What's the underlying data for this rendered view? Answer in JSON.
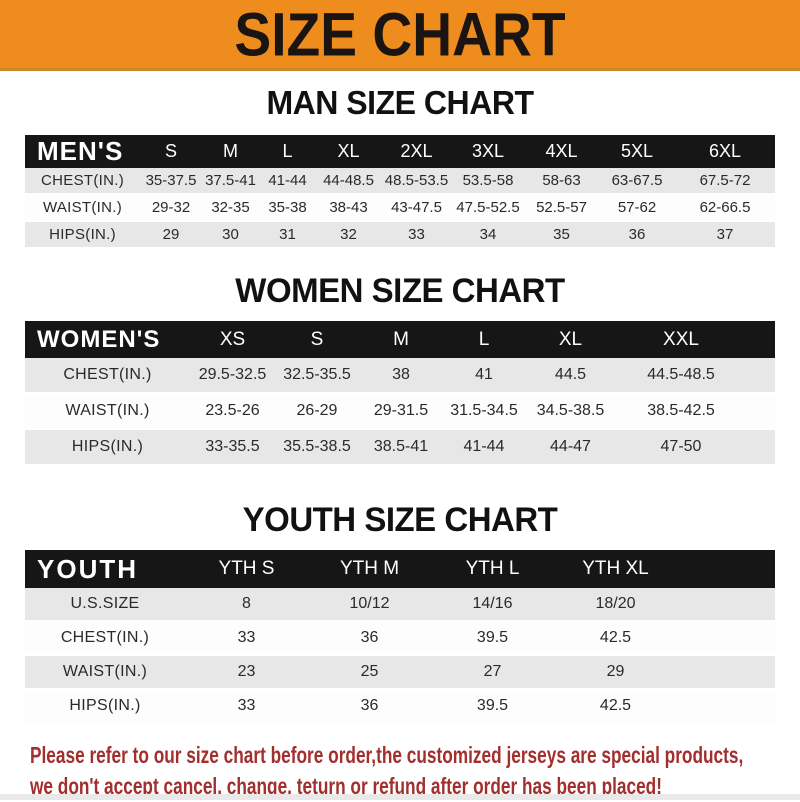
{
  "banner": {
    "title": "SIZE CHART"
  },
  "colors": {
    "banner_bg": "#EE8C1E",
    "header_bar": "#161616",
    "row_gray": "#E7E7E7",
    "footer_red": "#A32E2E"
  },
  "chart_data": [
    {
      "type": "table",
      "title": "MAN SIZE CHART",
      "header_label": "MEN'S",
      "columns": [
        "S",
        "M",
        "L",
        "XL",
        "2XL",
        "3XL",
        "4XL",
        "5XL",
        "6XL"
      ],
      "rows": [
        {
          "label": "CHEST(IN.)",
          "values": [
            "35-37.5",
            "37.5-41",
            "41-44",
            "44-48.5",
            "48.5-53.5",
            "53.5-58",
            "58-63",
            "63-67.5",
            "67.5-72"
          ]
        },
        {
          "label": "WAIST(IN.)",
          "values": [
            "29-32",
            "32-35",
            "35-38",
            "38-43",
            "43-47.5",
            "47.5-52.5",
            "52.5-57",
            "57-62",
            "62-66.5"
          ]
        },
        {
          "label": "HIPS(IN.)",
          "values": [
            "29",
            "30",
            "31",
            "32",
            "33",
            "34",
            "35",
            "36",
            "37"
          ]
        }
      ]
    },
    {
      "type": "table",
      "title": "WOMEN SIZE CHART",
      "header_label": "WOMEN'S",
      "columns": [
        "XS",
        "S",
        "M",
        "L",
        "XL",
        "XXL"
      ],
      "rows": [
        {
          "label": "CHEST(IN.)",
          "values": [
            "29.5-32.5",
            "32.5-35.5",
            "38",
            "41",
            "44.5",
            "44.5-48.5"
          ]
        },
        {
          "label": "WAIST(IN.)",
          "values": [
            "23.5-26",
            "26-29",
            "29-31.5",
            "31.5-34.5",
            "34.5-38.5",
            "38.5-42.5"
          ]
        },
        {
          "label": "HIPS(IN.)",
          "values": [
            "33-35.5",
            "35.5-38.5",
            "38.5-41",
            "41-44",
            "44-47",
            "47-50"
          ]
        }
      ]
    },
    {
      "type": "table",
      "title": "YOUTH SIZE CHART",
      "header_label": "YOUTH",
      "columns": [
        "YTH S",
        "YTH M",
        "YTH L",
        "YTH XL"
      ],
      "rows": [
        {
          "label": "U.S.SIZE",
          "values": [
            "8",
            "10/12",
            "14/16",
            "18/20"
          ]
        },
        {
          "label": "CHEST(IN.)",
          "values": [
            "33",
            "36",
            "39.5",
            "42.5"
          ]
        },
        {
          "label": "WAIST(IN.)",
          "values": [
            "23",
            "25",
            "27",
            "29"
          ]
        },
        {
          "label": "HIPS(IN.)",
          "values": [
            "33",
            "36",
            "39.5",
            "42.5"
          ]
        }
      ]
    }
  ],
  "footer": {
    "line1": "Please refer to our size chart before order,the customized jerseys are special products,",
    "line2": "we don't accept cancel, change, teturn or refund after order has been placed!"
  }
}
